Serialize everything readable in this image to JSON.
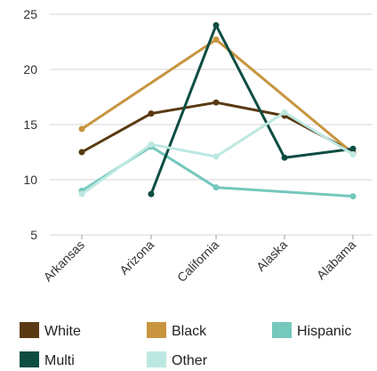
{
  "chart_data": {
    "type": "line",
    "categories": [
      "Arkansas",
      "Arizona",
      "California",
      "Alaska",
      "Alabama"
    ],
    "ylim": [
      5,
      25
    ],
    "yticks": [
      5,
      10,
      15,
      20,
      25
    ],
    "grid": "horizontal",
    "legend_placement": "bottom",
    "series": [
      {
        "name": "White",
        "color": "#5a3a12",
        "values": [
          12.5,
          16.0,
          17.0,
          15.8,
          12.5
        ]
      },
      {
        "name": "Black",
        "color": "#c8943e",
        "values": [
          14.6,
          null,
          22.7,
          null,
          12.4
        ]
      },
      {
        "name": "Hispanic",
        "color": "#74c8bc",
        "values": [
          9.0,
          13.0,
          9.3,
          null,
          8.5
        ]
      },
      {
        "name": "Multi",
        "color": "#0e4d42",
        "values": [
          null,
          8.7,
          24.0,
          12.0,
          12.8
        ]
      },
      {
        "name": "Other",
        "color": "#bde8e1",
        "values": [
          8.7,
          13.2,
          12.1,
          16.1,
          12.3
        ]
      }
    ]
  }
}
